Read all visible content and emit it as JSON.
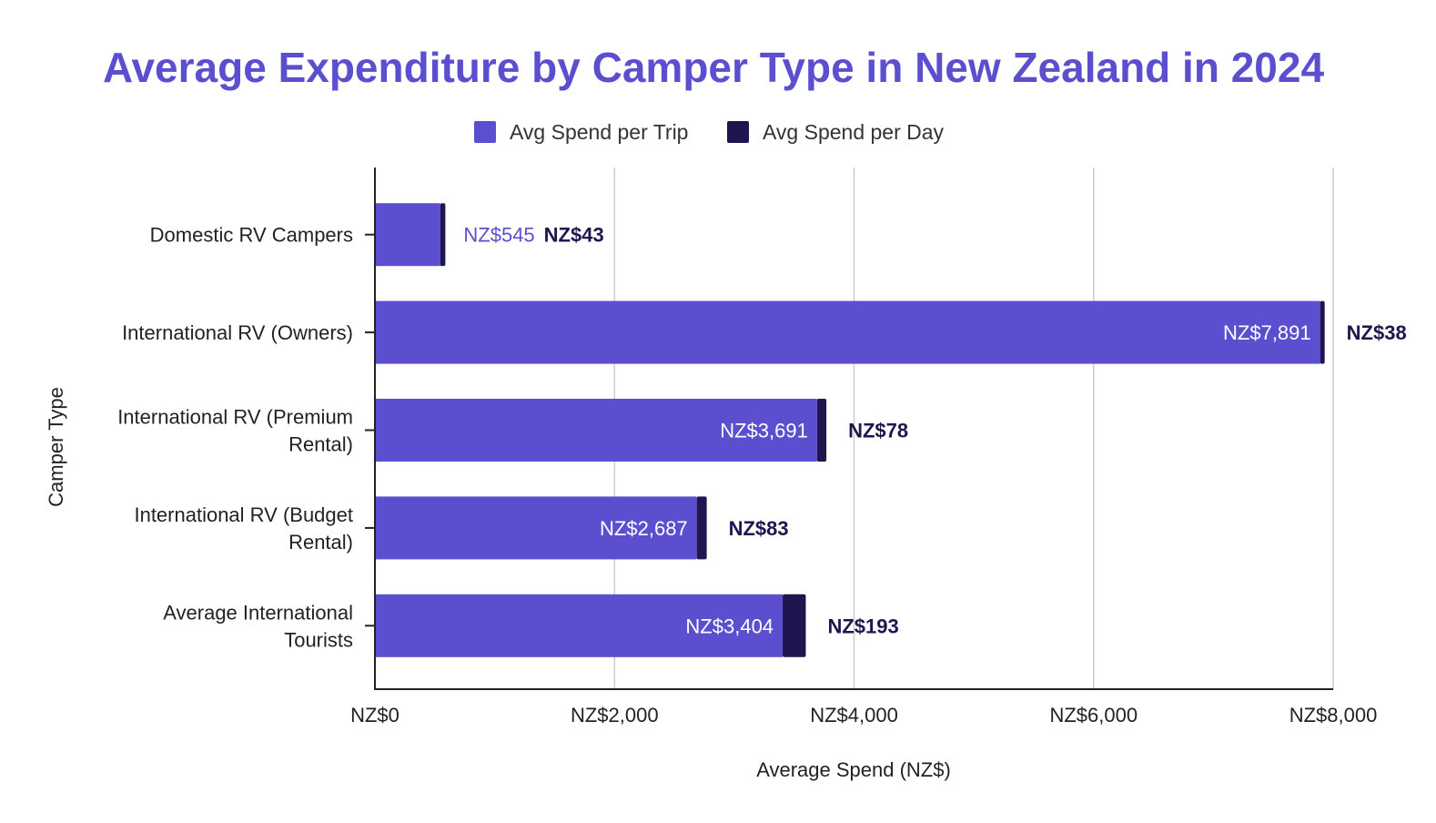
{
  "chart_data": {
    "type": "bar",
    "orientation": "horizontal",
    "stacked": true,
    "title": "Average Expenditure by Camper Type in New Zealand in 2024",
    "xlabel": "Average Spend (NZ$)",
    "ylabel": "Camper Type",
    "xlim": [
      0,
      8000
    ],
    "xticks": [
      0,
      2000,
      4000,
      6000,
      8000
    ],
    "xtick_labels": [
      "NZ$0",
      "NZ$2,000",
      "NZ$4,000",
      "NZ$6,000",
      "NZ$8,000"
    ],
    "grid": "vertical",
    "legend_position": "top-center",
    "categories": [
      [
        "Domestic RV Campers"
      ],
      [
        "International RV (Owners)"
      ],
      [
        "International RV (Premium",
        "Rental)"
      ],
      [
        "International RV (Budget",
        "Rental)"
      ],
      [
        "Average International",
        "Tourists"
      ]
    ],
    "series": [
      {
        "name": "Avg Spend per Trip",
        "color": "#5b4fcf",
        "values": [
          545,
          7891,
          3691,
          2687,
          3404
        ],
        "labels": [
          "NZ$545",
          "NZ$7,891",
          "NZ$3,691",
          "NZ$2,687",
          "NZ$3,404"
        ]
      },
      {
        "name": "Avg Spend per Day",
        "color": "#1f1650",
        "values": [
          43,
          38,
          78,
          83,
          193
        ],
        "labels": [
          "NZ$43",
          "NZ$38",
          "NZ$78",
          "NZ$83",
          "NZ$193"
        ]
      }
    ],
    "colors": {
      "title": "#5b4fcf",
      "grid": "#cccccc",
      "axis": "#222222",
      "trip_label_inside": "#ffffff",
      "trip_label_outside": "#5b4fcf",
      "day_label": "#1f1650"
    }
  }
}
